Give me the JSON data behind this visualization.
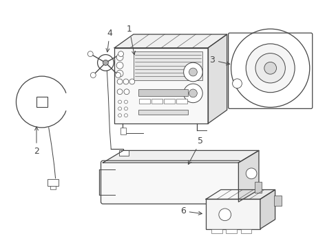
{
  "background_color": "#ffffff",
  "line_color": "#444444",
  "fig_width": 4.89,
  "fig_height": 3.6,
  "dpi": 100
}
